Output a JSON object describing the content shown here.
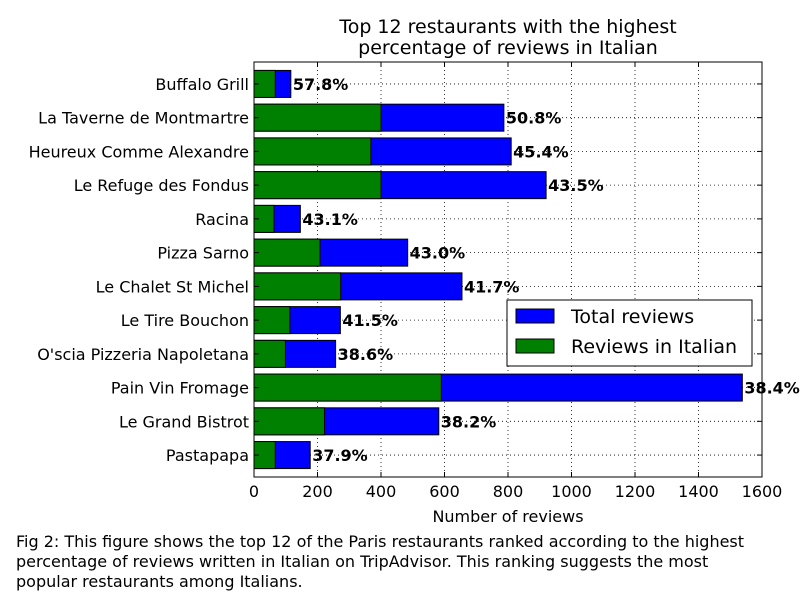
{
  "chart_data": {
    "type": "bar",
    "orientation": "horizontal",
    "stacked": "overlay",
    "title": "Top 12 restaurants with the highest\npercentage of reviews in Italian",
    "xlabel": "Number of reviews",
    "ylabel": "",
    "xlim": [
      0,
      1600
    ],
    "xticks": [
      0,
      200,
      400,
      600,
      800,
      1000,
      1200,
      1400,
      1600
    ],
    "grid": true,
    "legend_position": "center-right",
    "categories": [
      "Buffalo Grill",
      "La Taverne de Montmartre",
      "Heureux Comme Alexandre",
      "Le Refuge des Fondus",
      "Racina",
      "Pizza Sarno",
      "Le Chalet St Michel",
      "Le Tire Bouchon",
      "O'scia Pizzeria Napoletana",
      "Pain Vin Fromage",
      "Le Grand Bistrot",
      "Pastapapa"
    ],
    "series": [
      {
        "name": "Total reviews",
        "color": "#0000ff",
        "values": [
          116,
          787,
          810,
          920,
          146,
          484,
          655,
          272,
          257,
          1538,
          582,
          177
        ]
      },
      {
        "name": "Reviews in Italian",
        "color": "#008000",
        "values": [
          67,
          400,
          368,
          400,
          63,
          208,
          273,
          113,
          99,
          590,
          222,
          67
        ]
      }
    ],
    "data_labels": [
      "57.8%",
      "50.8%",
      "45.4%",
      "43.5%",
      "43.1%",
      "43.0%",
      "41.7%",
      "41.5%",
      "38.6%",
      "38.4%",
      "38.2%",
      "37.9%"
    ]
  },
  "caption": "Fig 2: This figure shows the top 12 of the Paris restaurants ranked according to the highest\n percentage of reviews written in Italian on TripAdvisor. This ranking suggests the most\n popular restaurants among Italians."
}
